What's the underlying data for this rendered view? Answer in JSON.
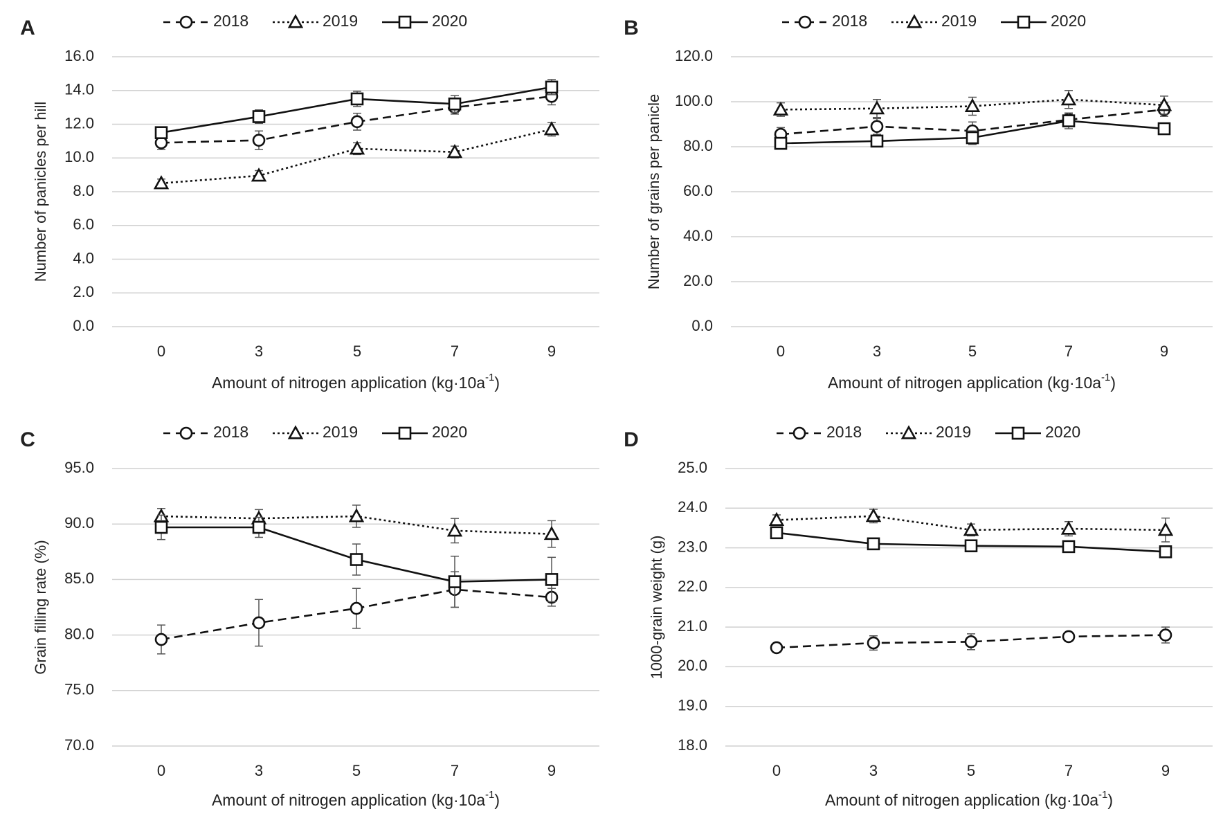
{
  "chart_data": [
    {
      "type": "line",
      "panel_label": "A",
      "xlabel": "Amount of nitrogen application (kg·10a",
      "xlabel_sup": "-1",
      "xlabel_end": ")",
      "ylabel": "Number of panicles per hill",
      "categories": [
        "0",
        "3",
        "5",
        "7",
        "9"
      ],
      "ylim": [
        0,
        16
      ],
      "yticks": [
        "0.0",
        "2.0",
        "4.0",
        "6.0",
        "8.0",
        "10.0",
        "12.0",
        "14.0",
        "16.0"
      ],
      "legend_position": "top",
      "grid": true,
      "series": [
        {
          "name": "2018",
          "marker": "circle",
          "line": "dashed",
          "values": [
            10.9,
            11.05,
            12.15,
            13.0,
            13.65
          ],
          "errors": [
            0.4,
            0.55,
            0.5,
            0.4,
            0.5
          ]
        },
        {
          "name": "2019",
          "marker": "triangle",
          "line": "dotted",
          "values": [
            8.5,
            8.95,
            10.55,
            10.35,
            11.7
          ],
          "errors": [
            0.25,
            0.3,
            0.35,
            0.35,
            0.4
          ]
        },
        {
          "name": "2020",
          "marker": "square",
          "line": "solid",
          "values": [
            11.5,
            12.45,
            13.5,
            13.2,
            14.2
          ],
          "errors": [
            0.3,
            0.4,
            0.45,
            0.5,
            0.45
          ]
        }
      ]
    },
    {
      "type": "line",
      "panel_label": "B",
      "xlabel": "Amount of nitrogen application (kg·10a",
      "xlabel_sup": "-1",
      "xlabel_end": ")",
      "ylabel": "Number of grains per panicle",
      "categories": [
        "0",
        "3",
        "5",
        "7",
        "9"
      ],
      "ylim": [
        0,
        120
      ],
      "yticks": [
        "0.0",
        "20.0",
        "40.0",
        "60.0",
        "80.0",
        "100.0",
        "120.0"
      ],
      "legend_position": "top",
      "grid": true,
      "series": [
        {
          "name": "2018",
          "marker": "circle",
          "line": "dashed",
          "values": [
            85.5,
            89,
            87,
            92,
            96.5
          ],
          "errors": [
            3,
            3.5,
            4,
            2.5,
            3
          ]
        },
        {
          "name": "2019",
          "marker": "triangle",
          "line": "dotted",
          "values": [
            96.5,
            97,
            98,
            101,
            98.5
          ],
          "errors": [
            3,
            4,
            4,
            4,
            4
          ]
        },
        {
          "name": "2020",
          "marker": "square",
          "line": "solid",
          "values": [
            81.5,
            82.5,
            84,
            91.5,
            88
          ],
          "errors": [
            2,
            2.5,
            3,
            3.5,
            2
          ]
        }
      ]
    },
    {
      "type": "line",
      "panel_label": "C",
      "xlabel": "Amount of nitrogen application (kg·10a",
      "xlabel_sup": "-1",
      "xlabel_end": ")",
      "ylabel": "Grain filling rate (%)",
      "categories": [
        "0",
        "3",
        "5",
        "7",
        "9"
      ],
      "ylim": [
        70,
        95
      ],
      "yticks": [
        "70.0",
        "75.0",
        "80.0",
        "85.0",
        "90.0",
        "95.0"
      ],
      "legend_position": "top",
      "grid": true,
      "series": [
        {
          "name": "2018",
          "marker": "circle",
          "line": "dashed",
          "values": [
            79.6,
            81.1,
            82.4,
            84.1,
            83.4
          ],
          "errors": [
            1.3,
            2.1,
            1.8,
            1.6,
            0.8
          ]
        },
        {
          "name": "2019",
          "marker": "triangle",
          "line": "dotted",
          "values": [
            90.7,
            90.5,
            90.7,
            89.4,
            89.1
          ],
          "errors": [
            0.7,
            0.8,
            1.0,
            1.1,
            1.2
          ]
        },
        {
          "name": "2020",
          "marker": "square",
          "line": "solid",
          "values": [
            89.7,
            89.7,
            86.8,
            84.8,
            85.0
          ],
          "errors": [
            1.1,
            0.9,
            1.4,
            2.3,
            2.0
          ]
        }
      ]
    },
    {
      "type": "line",
      "panel_label": "D",
      "xlabel": "Amount of nitrogen application (kg·10a",
      "xlabel_sup": "-1",
      "xlabel_end": ")",
      "ylabel": "1000-grain weight (g)",
      "categories": [
        "0",
        "3",
        "5",
        "7",
        "9"
      ],
      "ylim": [
        18,
        25
      ],
      "yticks": [
        "18.0",
        "19.0",
        "20.0",
        "21.0",
        "22.0",
        "23.0",
        "24.0",
        "25.0"
      ],
      "legend_position": "top",
      "grid": true,
      "series": [
        {
          "name": "2018",
          "marker": "circle",
          "line": "dashed",
          "values": [
            20.48,
            20.6,
            20.63,
            20.76,
            20.8
          ],
          "errors": [
            0.1,
            0.18,
            0.2,
            0.08,
            0.2
          ]
        },
        {
          "name": "2019",
          "marker": "triangle",
          "line": "dotted",
          "values": [
            23.7,
            23.8,
            23.45,
            23.48,
            23.45
          ],
          "errors": [
            0.13,
            0.17,
            0.15,
            0.18,
            0.3
          ]
        },
        {
          "name": "2020",
          "marker": "square",
          "line": "solid",
          "values": [
            23.38,
            23.1,
            23.05,
            23.03,
            22.9
          ],
          "errors": [
            0.05,
            0.05,
            0.05,
            0.1,
            0.05
          ]
        }
      ]
    }
  ]
}
